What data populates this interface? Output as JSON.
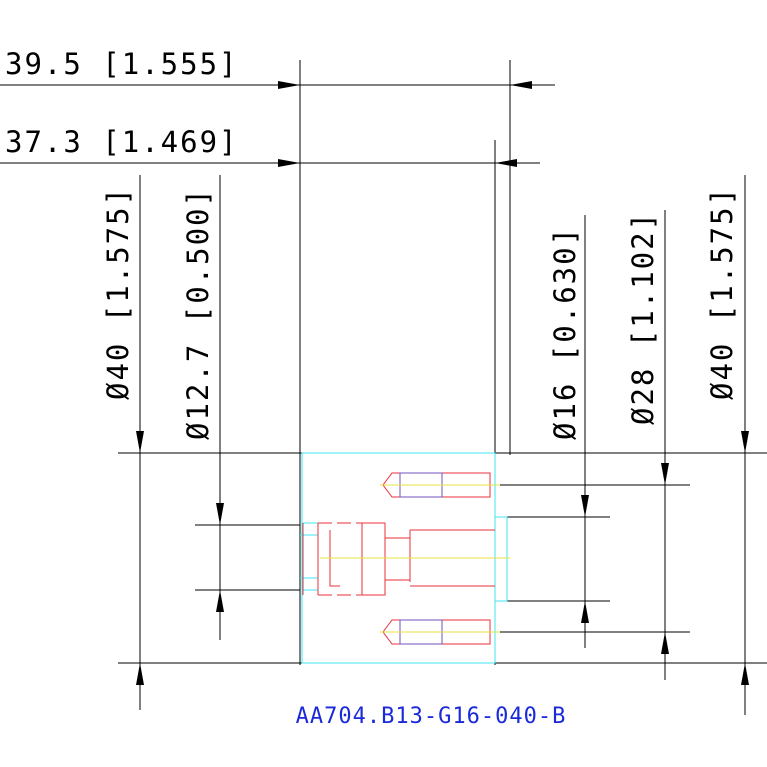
{
  "dimensions": {
    "overall_length": "39.5 [1.555]",
    "body_length": "37.3 [1.469]",
    "left_diameter": "Ø40 [1.575]",
    "bore_diameter": "Ø12.7 [0.500]",
    "pilot_diameter": "Ø16 [0.630]",
    "bolt_circle": "Ø28 [1.102]",
    "right_diameter": "Ø40 [1.575]"
  },
  "part_number": "AA704.B13-G16-040-B"
}
